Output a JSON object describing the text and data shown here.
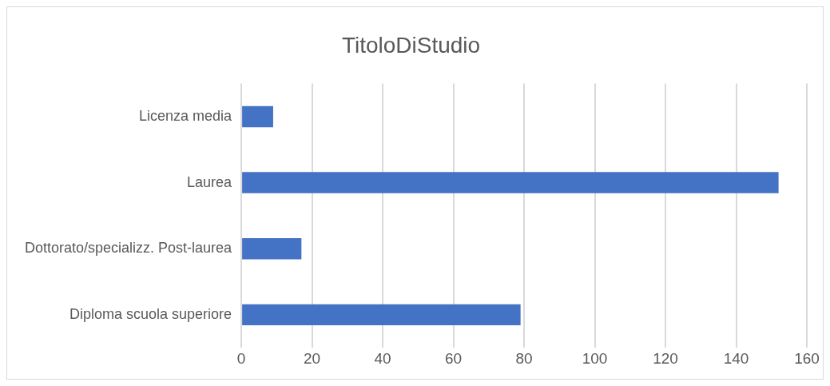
{
  "chart_data": {
    "type": "bar",
    "orientation": "horizontal",
    "title": "TitoloDiStudio",
    "categories": [
      "Licenza media",
      "Laurea",
      "Dottorato/specializz. Post-laurea",
      "Diploma scuola superiore"
    ],
    "values": [
      9,
      152,
      17,
      79
    ],
    "color": "#4472c4",
    "xlim": [
      0,
      160
    ],
    "xticks": [
      0,
      20,
      40,
      60,
      80,
      100,
      120,
      140,
      160
    ],
    "grid": "x",
    "legend": false
  }
}
